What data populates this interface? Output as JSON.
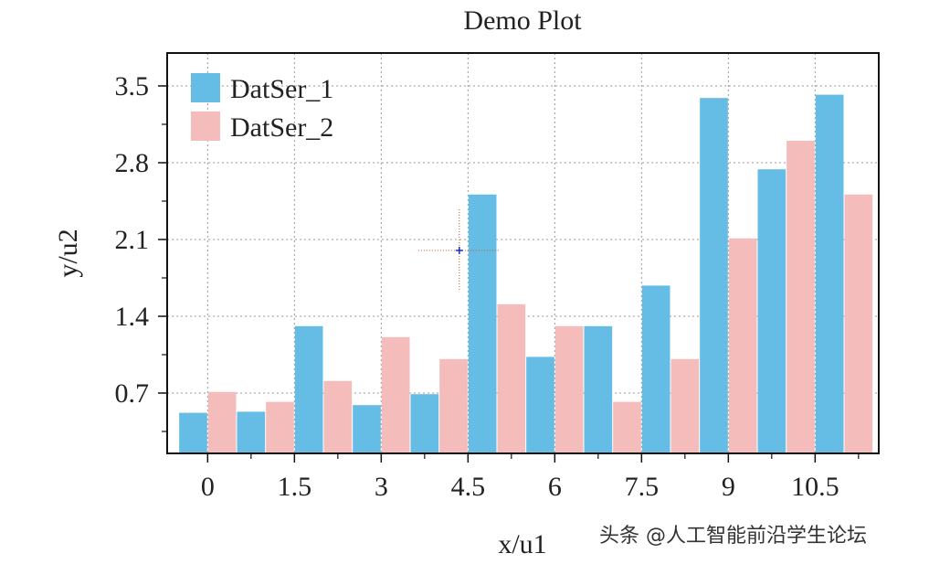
{
  "chart_data": {
    "type": "bar",
    "title": "Demo Plot",
    "xlabel": "x/u1",
    "ylabel": "y/u2",
    "x_tick_labels": [
      "0",
      "1.5",
      "3",
      "4.5",
      "6",
      "7.5",
      "9",
      "10.5"
    ],
    "y_tick_labels": [
      "0.7",
      "1.4",
      "2.1",
      "2.8",
      "3.5"
    ],
    "x_ticks": [
      0,
      1.5,
      3,
      4.5,
      6,
      7.5,
      9,
      10.5
    ],
    "y_ticks": [
      0.7,
      1.4,
      2.1,
      2.8,
      3.5
    ],
    "xlim": [
      -0.7,
      11.6
    ],
    "ylim": [
      0.15,
      3.8
    ],
    "grid": true,
    "legend_position": "top-left",
    "x": [
      0,
      1,
      2,
      3,
      4,
      5,
      6,
      7,
      8,
      9,
      10,
      11
    ],
    "series": [
      {
        "name": "DatSer_1",
        "color": "#65bde6",
        "values": [
          0.52,
          0.53,
          1.31,
          0.59,
          0.69,
          2.51,
          1.03,
          1.31,
          1.68,
          3.39,
          2.74,
          3.42
        ]
      },
      {
        "name": "DatSer_2",
        "color": "#f5bcbc",
        "values": [
          0.71,
          0.62,
          0.81,
          1.21,
          1.01,
          1.51,
          1.31,
          0.62,
          1.01,
          2.11,
          3.0,
          2.51
        ]
      }
    ],
    "cursor": {
      "x": 4.35,
      "y": 2.0
    }
  },
  "watermark": "头条 @人工智能前沿学生论坛"
}
